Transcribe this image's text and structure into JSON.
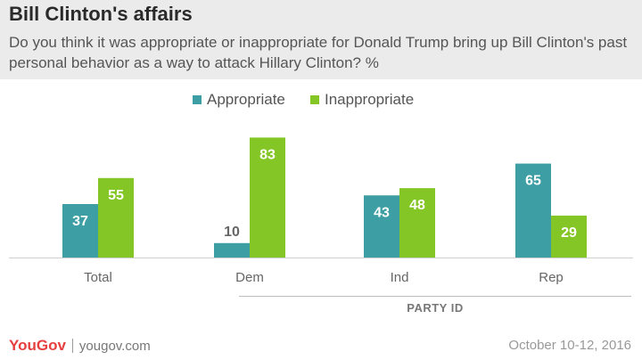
{
  "header": {
    "title": "Bill Clinton's affairs",
    "subtitle": "Do you think it was appropriate or inappropriate for Donald Trump bring up Bill Clinton's past personal behavior as a way to attack Hillary Clinton? %"
  },
  "chart_data": {
    "type": "bar",
    "title": "Bill Clinton's affairs",
    "subtitle": "Do you think it was appropriate or inappropriate for Donald Trump bring up Bill Clinton's past personal behavior as a way to attack Hillary Clinton? %",
    "categories": [
      "Total",
      "Dem",
      "Ind",
      "Rep"
    ],
    "series": [
      {
        "name": "Appropriate",
        "color": "#3d9ea4",
        "values": [
          37,
          10,
          43,
          65
        ]
      },
      {
        "name": "Inappropriate",
        "color": "#84c626",
        "values": [
          55,
          83,
          48,
          29
        ]
      }
    ],
    "label_colors": {
      "inside": "#ffffff",
      "outside": "#666666"
    },
    "group_label": "PARTY ID",
    "ylim": [
      0,
      90
    ],
    "grid": false,
    "legend": "top-center"
  },
  "footer": {
    "logo": "YouGov",
    "site": "yougov.com",
    "date": "October 10-12, 2016"
  }
}
